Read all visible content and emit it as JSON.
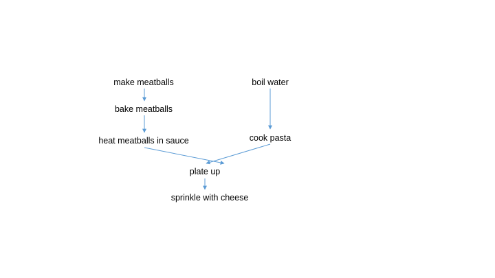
{
  "diagram": {
    "edge_color": "#5B9BD5",
    "nodes": [
      {
        "id": "make_meatballs",
        "label": "make meatballs"
      },
      {
        "id": "bake_meatballs",
        "label": "bake meatballs"
      },
      {
        "id": "heat_meatballs",
        "label": "heat meatballs in sauce"
      },
      {
        "id": "boil_water",
        "label": "boil water"
      },
      {
        "id": "cook_pasta",
        "label": "cook pasta"
      },
      {
        "id": "plate_up",
        "label": "plate up"
      },
      {
        "id": "sprinkle_cheese",
        "label": "sprinkle with cheese"
      }
    ],
    "edges": [
      {
        "from": "make_meatballs",
        "to": "bake_meatballs"
      },
      {
        "from": "bake_meatballs",
        "to": "heat_meatballs"
      },
      {
        "from": "boil_water",
        "to": "cook_pasta"
      },
      {
        "from": "heat_meatballs",
        "to": "plate_up"
      },
      {
        "from": "cook_pasta",
        "to": "plate_up"
      },
      {
        "from": "plate_up",
        "to": "sprinkle_cheese"
      }
    ]
  }
}
